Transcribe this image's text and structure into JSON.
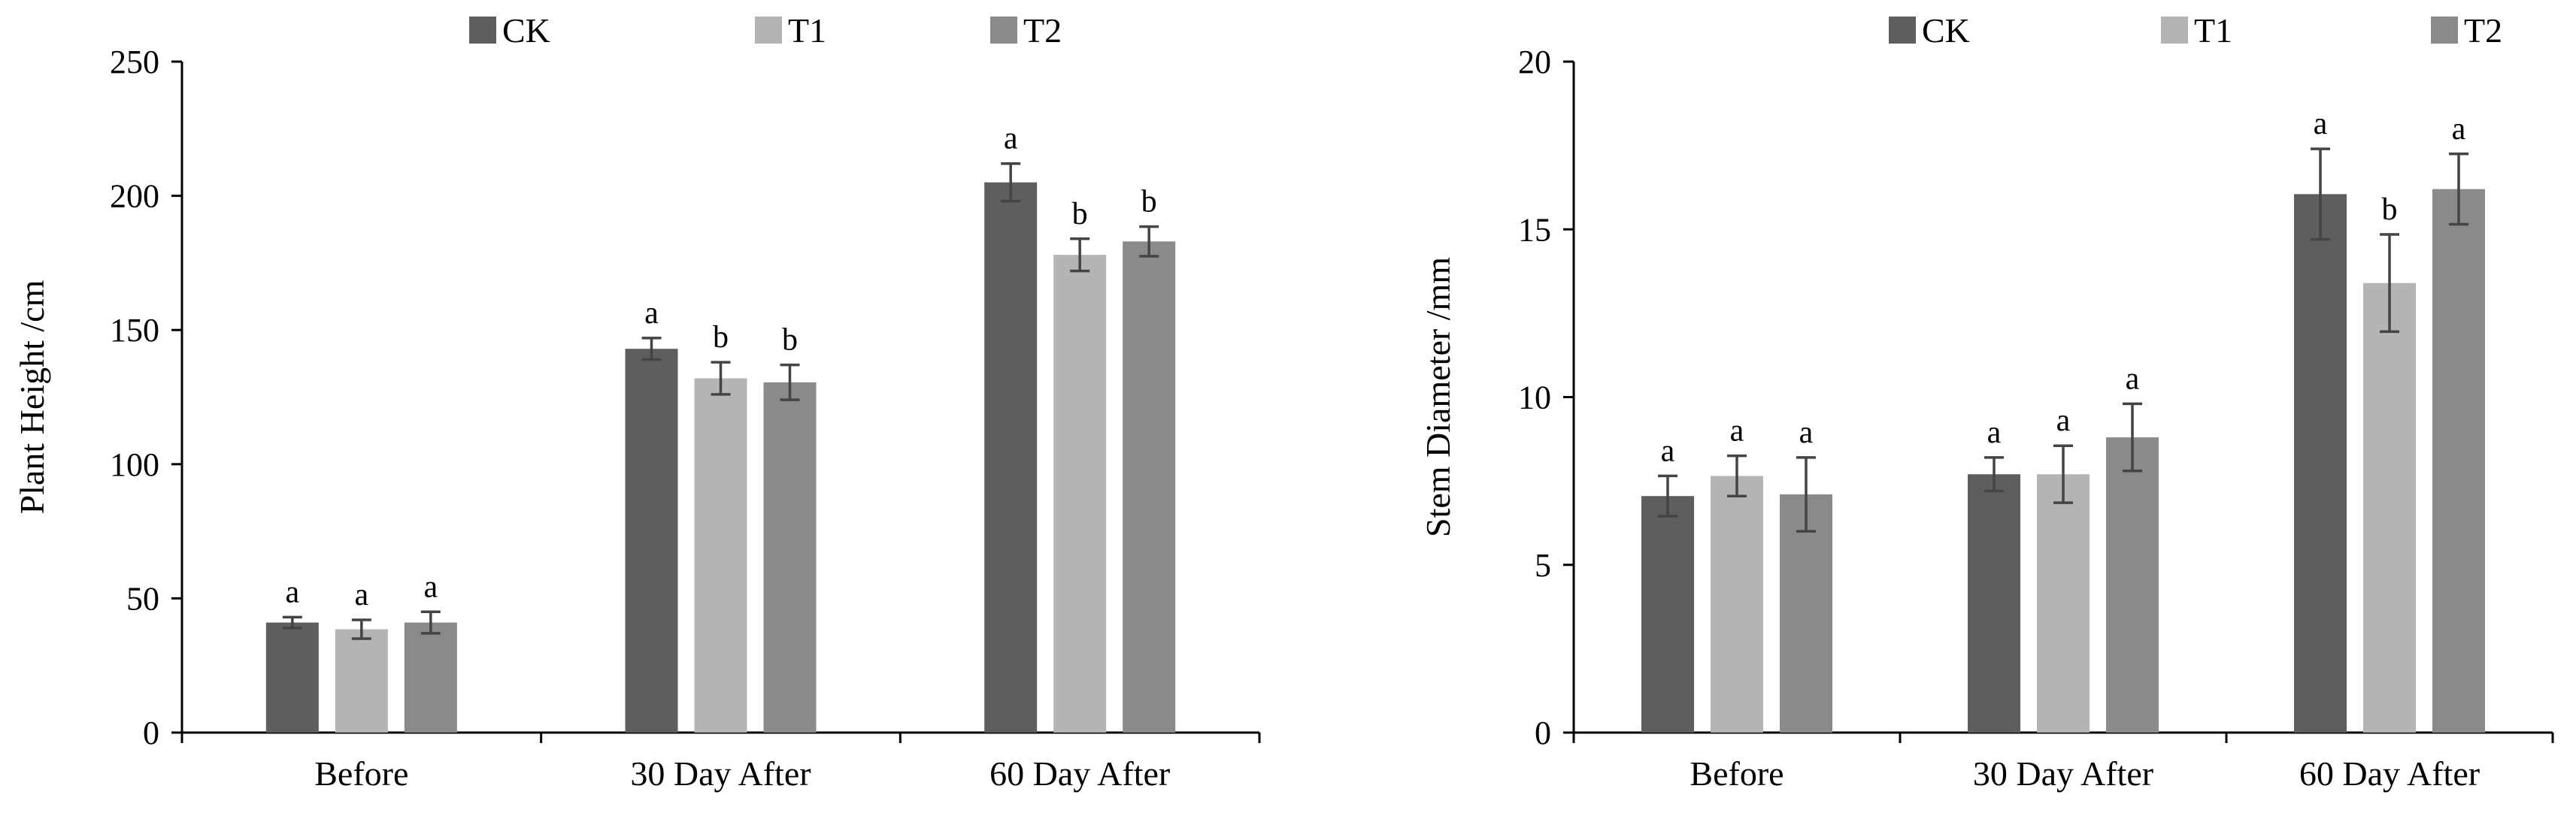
{
  "chart_data": [
    {
      "type": "bar",
      "title": "",
      "xlabel": "",
      "ylabel": "Plant Height /cm",
      "ylim": [
        0,
        250
      ],
      "yticks": [
        0,
        50,
        100,
        150,
        200,
        250
      ],
      "categories": [
        "Before",
        "30 Day After",
        "60 Day After"
      ],
      "series": [
        {
          "name": "CK",
          "color": "#5e5e5e",
          "values": [
            41,
            143,
            205
          ],
          "errors": [
            2,
            4,
            7
          ],
          "labels": [
            "a",
            "a",
            "a"
          ]
        },
        {
          "name": "T1",
          "color": "#b4b4b4",
          "values": [
            38.5,
            132,
            178
          ],
          "errors": [
            3.5,
            6,
            6
          ],
          "labels": [
            "a",
            "b",
            "b"
          ]
        },
        {
          "name": "T2",
          "color": "#8a8a8a",
          "values": [
            41,
            130.5,
            183
          ],
          "errors": [
            4,
            6.5,
            5.5
          ],
          "labels": [
            "a",
            "b",
            "b"
          ]
        }
      ],
      "legend": "top"
    },
    {
      "type": "bar",
      "title": "",
      "xlabel": "",
      "ylabel": "Stem Diameter /mm",
      "ylim": [
        0,
        20
      ],
      "yticks": [
        0,
        5,
        10,
        15,
        20
      ],
      "categories": [
        "Before",
        "30 Day After",
        "60 Day After"
      ],
      "series": [
        {
          "name": "CK",
          "color": "#5e5e5e",
          "values": [
            7.05,
            7.7,
            16.05
          ],
          "errors": [
            0.6,
            0.5,
            1.35
          ],
          "labels": [
            "a",
            "a",
            "a"
          ]
        },
        {
          "name": "T1",
          "color": "#b4b4b4",
          "values": [
            7.65,
            7.7,
            13.4
          ],
          "errors": [
            0.6,
            0.85,
            1.45
          ],
          "labels": [
            "a",
            "a",
            "b"
          ]
        },
        {
          "name": "T2",
          "color": "#8a8a8a",
          "values": [
            7.1,
            8.8,
            16.2
          ],
          "errors": [
            1.1,
            1.0,
            1.05
          ],
          "labels": [
            "a",
            "a",
            "a"
          ]
        }
      ],
      "legend": "top"
    }
  ]
}
